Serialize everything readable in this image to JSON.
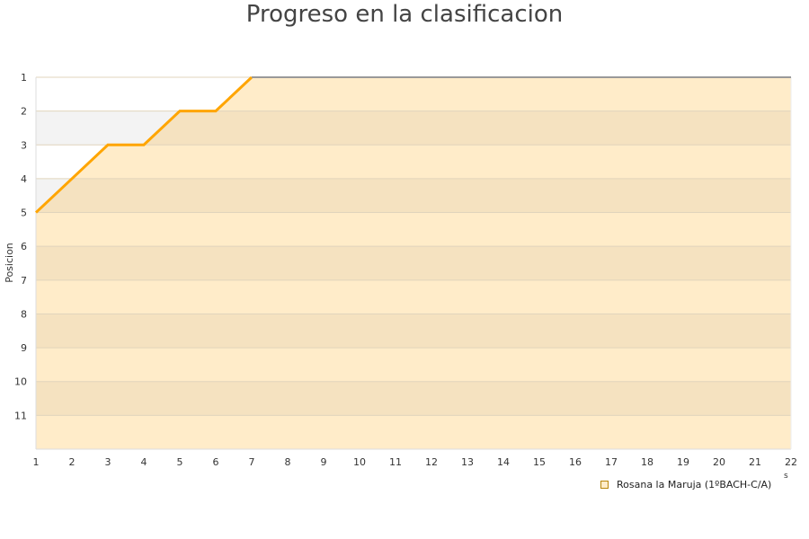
{
  "chart_data": {
    "type": "area",
    "title": "Progreso en la clasificacion",
    "xlabel": "s",
    "ylabel": "Posicion",
    "x": [
      1,
      2,
      3,
      4,
      5,
      6,
      7,
      8,
      9,
      10,
      11,
      12,
      13,
      14,
      15,
      16,
      17,
      18,
      19,
      20,
      21,
      22
    ],
    "series": [
      {
        "name": "Rosana la Maruja (1ºBACH-C/A)",
        "values": [
          5,
          4,
          3,
          3,
          2,
          2,
          1,
          1,
          1,
          1,
          1,
          1,
          1,
          1,
          1,
          1,
          1,
          1,
          1,
          1,
          1,
          1
        ]
      }
    ],
    "xlim": [
      1,
      22
    ],
    "ylim": [
      1,
      12
    ],
    "y_inverted": true,
    "yticks": [
      1,
      2,
      3,
      4,
      5,
      6,
      7,
      8,
      9,
      10,
      11
    ],
    "grid": true,
    "legend": "bottom-right",
    "colors": {
      "line": "#ffa500",
      "fill": "#ffecc9",
      "fill_alt": "#f5e2c0",
      "band_alt": "#f3f3f3"
    }
  }
}
